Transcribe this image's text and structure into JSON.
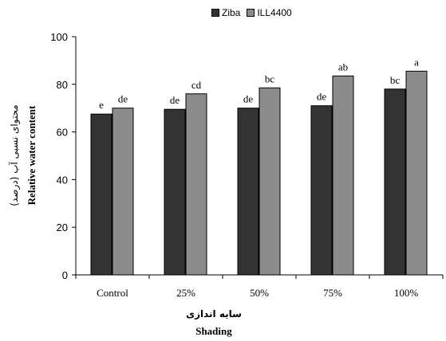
{
  "chart_data": {
    "type": "bar",
    "categories": [
      "Control",
      "25%",
      "50%",
      "75%",
      "100%"
    ],
    "series": [
      {
        "name": "Ziba",
        "values": [
          67.5,
          69.5,
          70.0,
          71.0,
          78.0
        ],
        "labels": [
          "e",
          "de",
          "de",
          "de",
          "bc"
        ]
      },
      {
        "name": "ILL4400",
        "values": [
          70.0,
          76.0,
          78.5,
          83.5,
          85.5
        ],
        "labels": [
          "de",
          "cd",
          "bc",
          "ab",
          "a"
        ]
      }
    ],
    "ylabel_fa": "محتوای نسبی آب (درصد)",
    "ylabel": "Relative water content",
    "xlabel_fa": "سایه اندازی",
    "xlabel": "Shading",
    "ylim": [
      0,
      100
    ],
    "yticks": [
      0,
      20,
      40,
      60,
      80,
      100
    ],
    "legend_position": "top",
    "colors": {
      "Ziba": "#333333",
      "ILL4400": "#8c8c8c"
    }
  }
}
